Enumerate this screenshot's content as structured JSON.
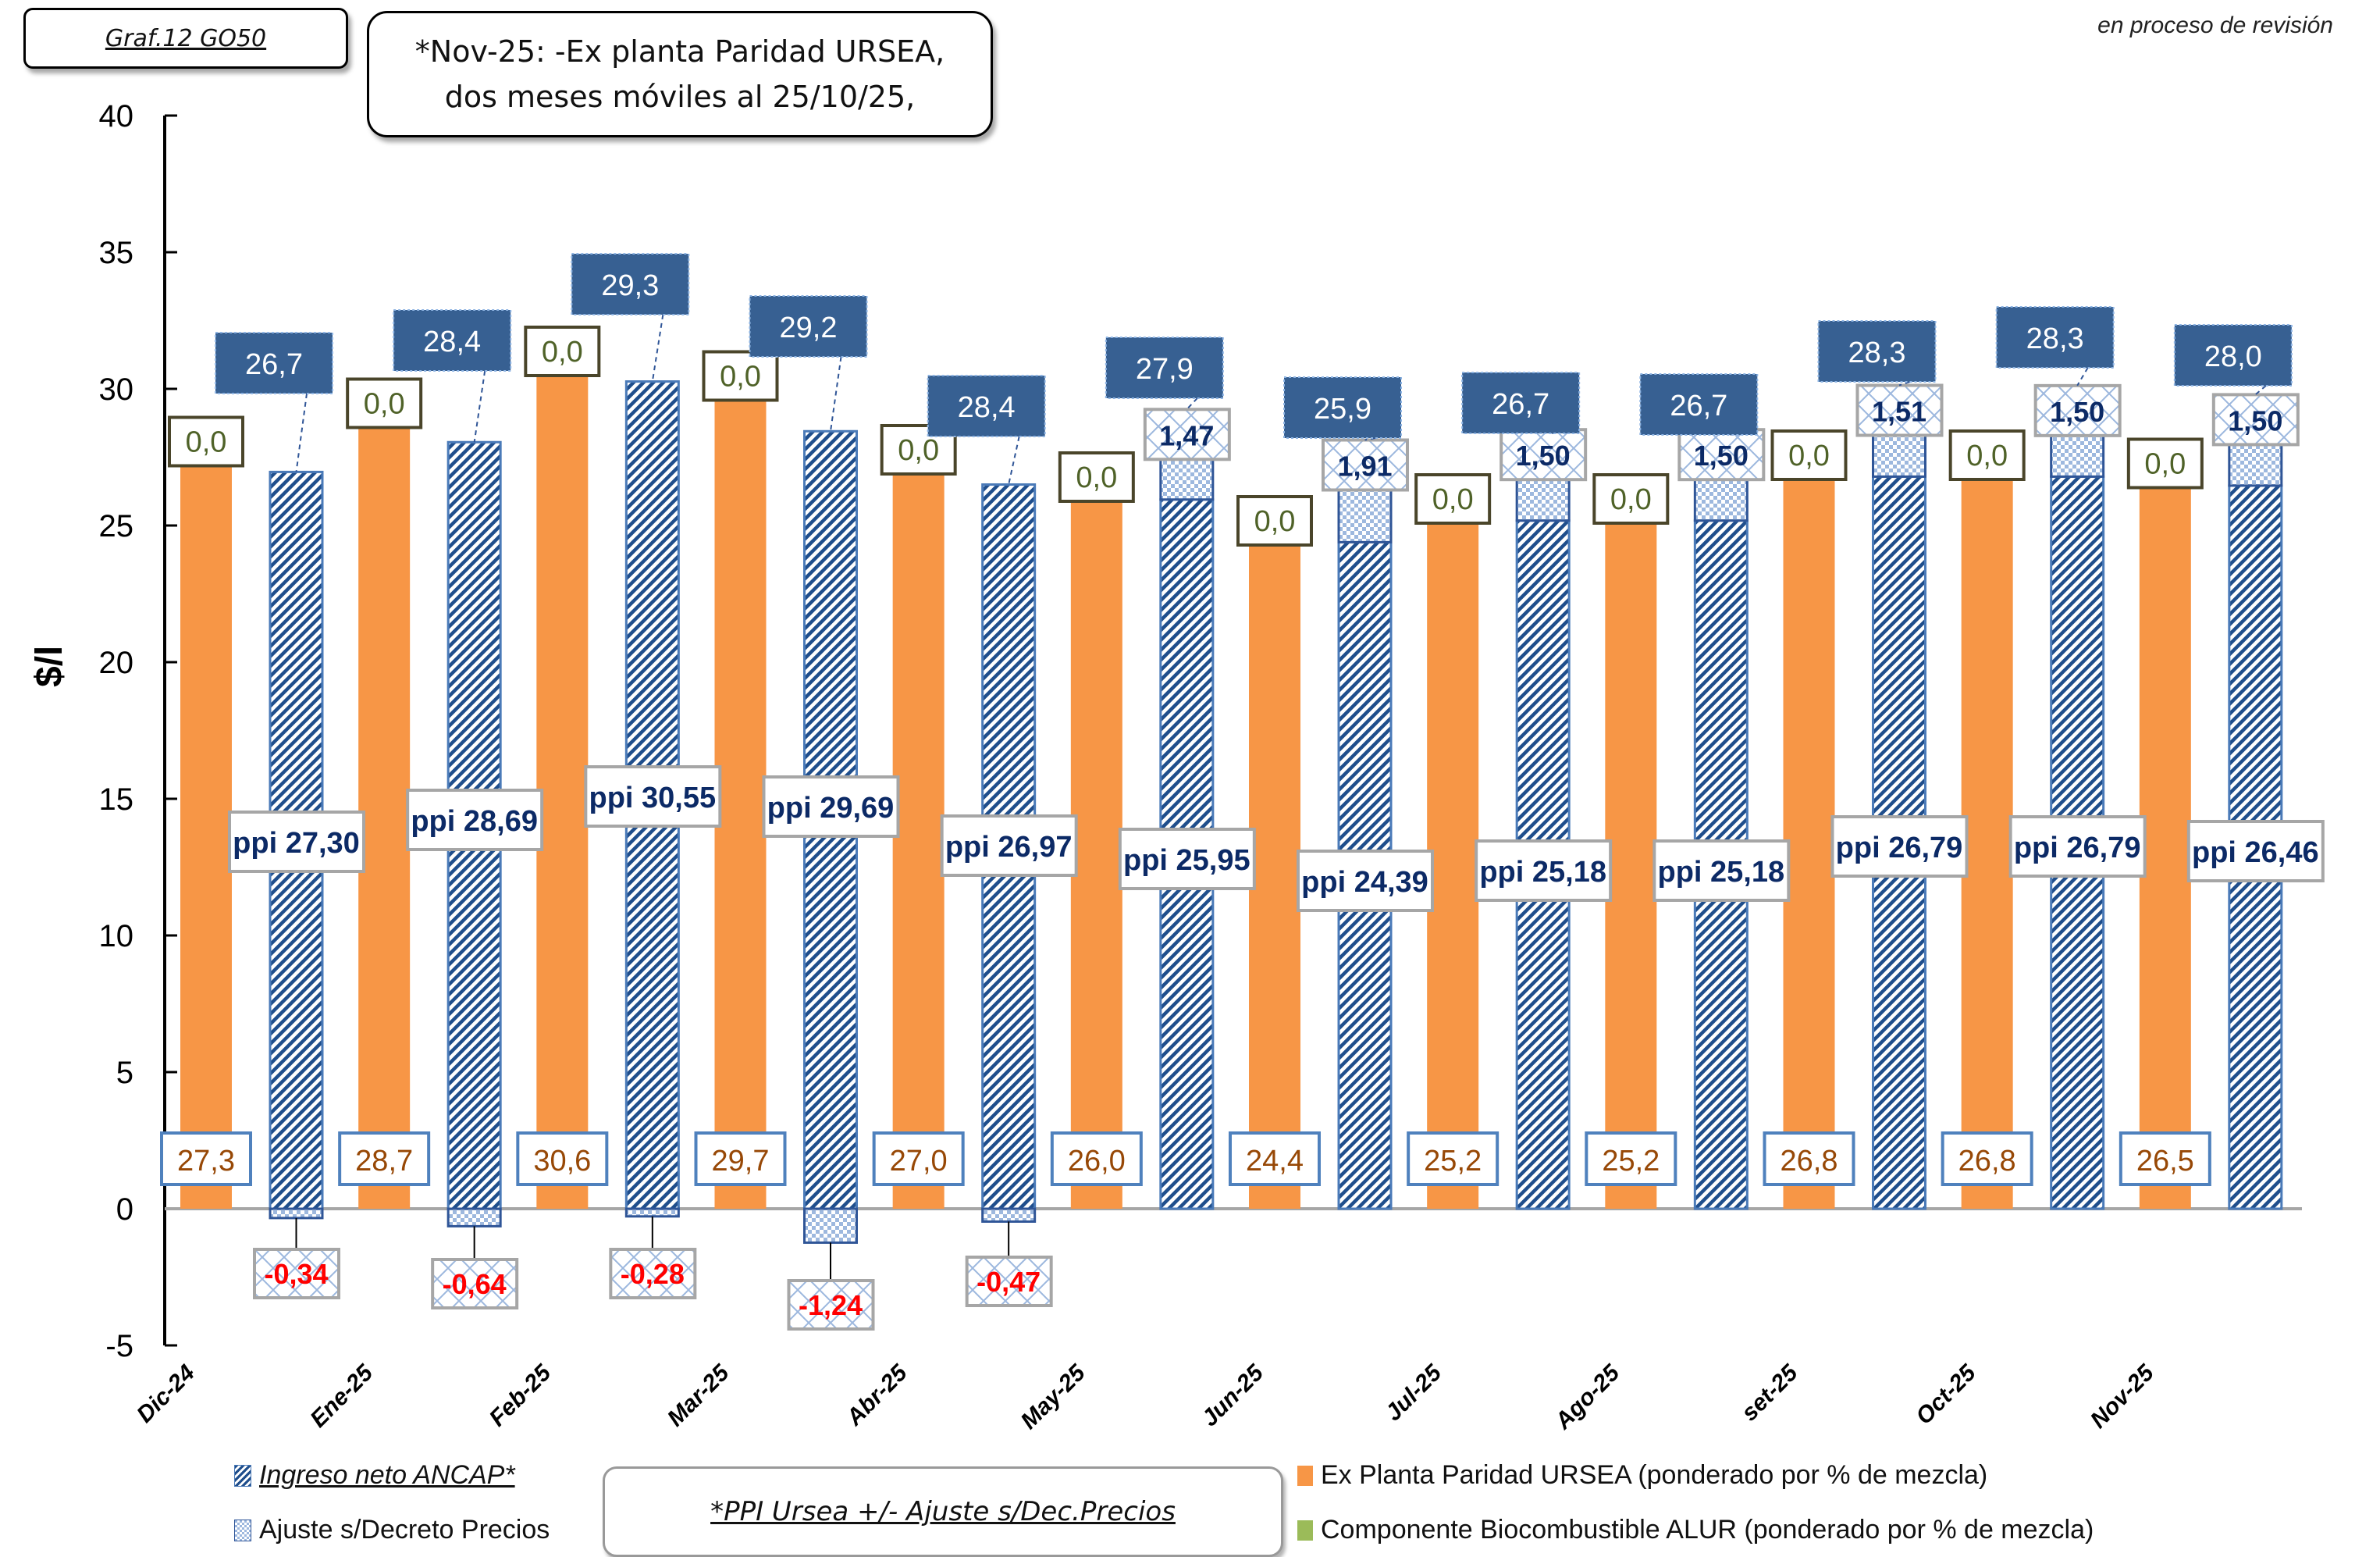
{
  "header": {
    "chart_id": "Graf.12  GO50",
    "note_line1": "*Nov-25: -Ex planta Paridad URSEA,",
    "note_line2": "dos meses móviles al 25/10/25,",
    "revision_status": "en proceso de revisión"
  },
  "legend": {
    "ingreso_neto": "Ingreso neto ANCAP*",
    "ajuste": "Ajuste s/Decreto Precios",
    "ex_planta": "Ex Planta Paridad URSEA (ponderado por % de mezcla)",
    "biocombustible": "Componente Biocombustible ALUR (ponderado por % de mezcla)",
    "ppi_note": "*PPI Ursea +/- Ajuste s/Dec.Precios"
  },
  "colors": {
    "ex_planta": "#f79646",
    "ingreso_neto_hatch": "#1f4e8c",
    "ajuste_fill": "#9db8de",
    "top_label_bg": "#376092",
    "biocombustible": "#9bbb59",
    "negative_text": "#ff0000",
    "ppi_text": "#0c2a66",
    "ex_planta_text": "#974806",
    "bio_text": "#4f6228"
  },
  "chart_data": {
    "type": "bar",
    "title": "Graf.12  GO50",
    "xlabel": "",
    "ylabel": "$/l",
    "ylim": [
      -5,
      40
    ],
    "yticks": [
      -5,
      0,
      5,
      10,
      15,
      20,
      25,
      30,
      35,
      40
    ],
    "grid": false,
    "legend_position": "bottom",
    "categories": [
      "Dic-24",
      "Ene-25",
      "Feb-25",
      "Mar-25",
      "Abr-25",
      "May-25",
      "Jun-25",
      "Jul-25",
      "Ago-25",
      "set-25",
      "Oct-25",
      "Nov-25"
    ],
    "series": [
      {
        "name": "Ex Planta Paridad URSEA (ponderado por % de mezcla)",
        "stack": "A",
        "values": [
          27.3,
          28.7,
          30.6,
          29.7,
          27.0,
          26.0,
          24.4,
          25.2,
          25.2,
          26.8,
          26.8,
          26.5
        ],
        "labels": [
          "27,3",
          "28,7",
          "30,6",
          "29,7",
          "27,0",
          "26,0",
          "24,4",
          "25,2",
          "25,2",
          "26,8",
          "26,8",
          "26,5"
        ]
      },
      {
        "name": "Componente Biocombustible ALUR (ponderado por % de mezcla)",
        "stack": "A",
        "values": [
          0.0,
          0.0,
          0.0,
          0.0,
          0.0,
          0.0,
          0.0,
          0.0,
          0.0,
          0.0,
          0.0,
          0.0
        ],
        "labels": [
          "0,0",
          "0,0",
          "0,0",
          "0,0",
          "0,0",
          "0,0",
          "0,0",
          "0,0",
          "0,0",
          "0,0",
          "0,0",
          "0,0"
        ]
      },
      {
        "name": "Ingreso neto ANCAP*",
        "stack": "B",
        "values": [
          27.3,
          28.69,
          30.55,
          29.69,
          26.97,
          25.95,
          24.39,
          25.18,
          25.18,
          26.79,
          26.79,
          26.46
        ],
        "labels": [
          "ppi 27,30",
          "ppi 28,69",
          "ppi 30,55",
          "ppi 29,69",
          "ppi 26,97",
          "ppi 25,95",
          "ppi 24,39",
          "ppi 25,18",
          "ppi 25,18",
          "ppi 26,79",
          "ppi 26,79",
          "ppi 26,46"
        ]
      },
      {
        "name": "Ajuste s/Decreto Precios",
        "stack": "B",
        "values": [
          -0.34,
          -0.64,
          -0.28,
          -1.24,
          -0.47,
          1.47,
          1.91,
          1.5,
          1.5,
          1.51,
          1.5,
          1.5
        ],
        "labels": [
          "-0,34",
          "-0,64",
          "-0,28",
          "-1,24",
          "-0,47",
          "1,47",
          "1,91",
          "1,50",
          "1,50",
          "1,51",
          "1,50",
          "1,50"
        ]
      }
    ],
    "totals": {
      "name": "Ingreso neto ANCAP total",
      "values": [
        26.7,
        28.4,
        29.3,
        29.2,
        28.4,
        27.9,
        25.9,
        26.7,
        26.7,
        28.3,
        28.3,
        28.0
      ],
      "labels": [
        "26,7",
        "28,4",
        "29,3",
        "29,2",
        "28,4",
        "27,9",
        "25,9",
        "26,7",
        "26,7",
        "28,3",
        "28,3",
        "28,0"
      ]
    }
  }
}
